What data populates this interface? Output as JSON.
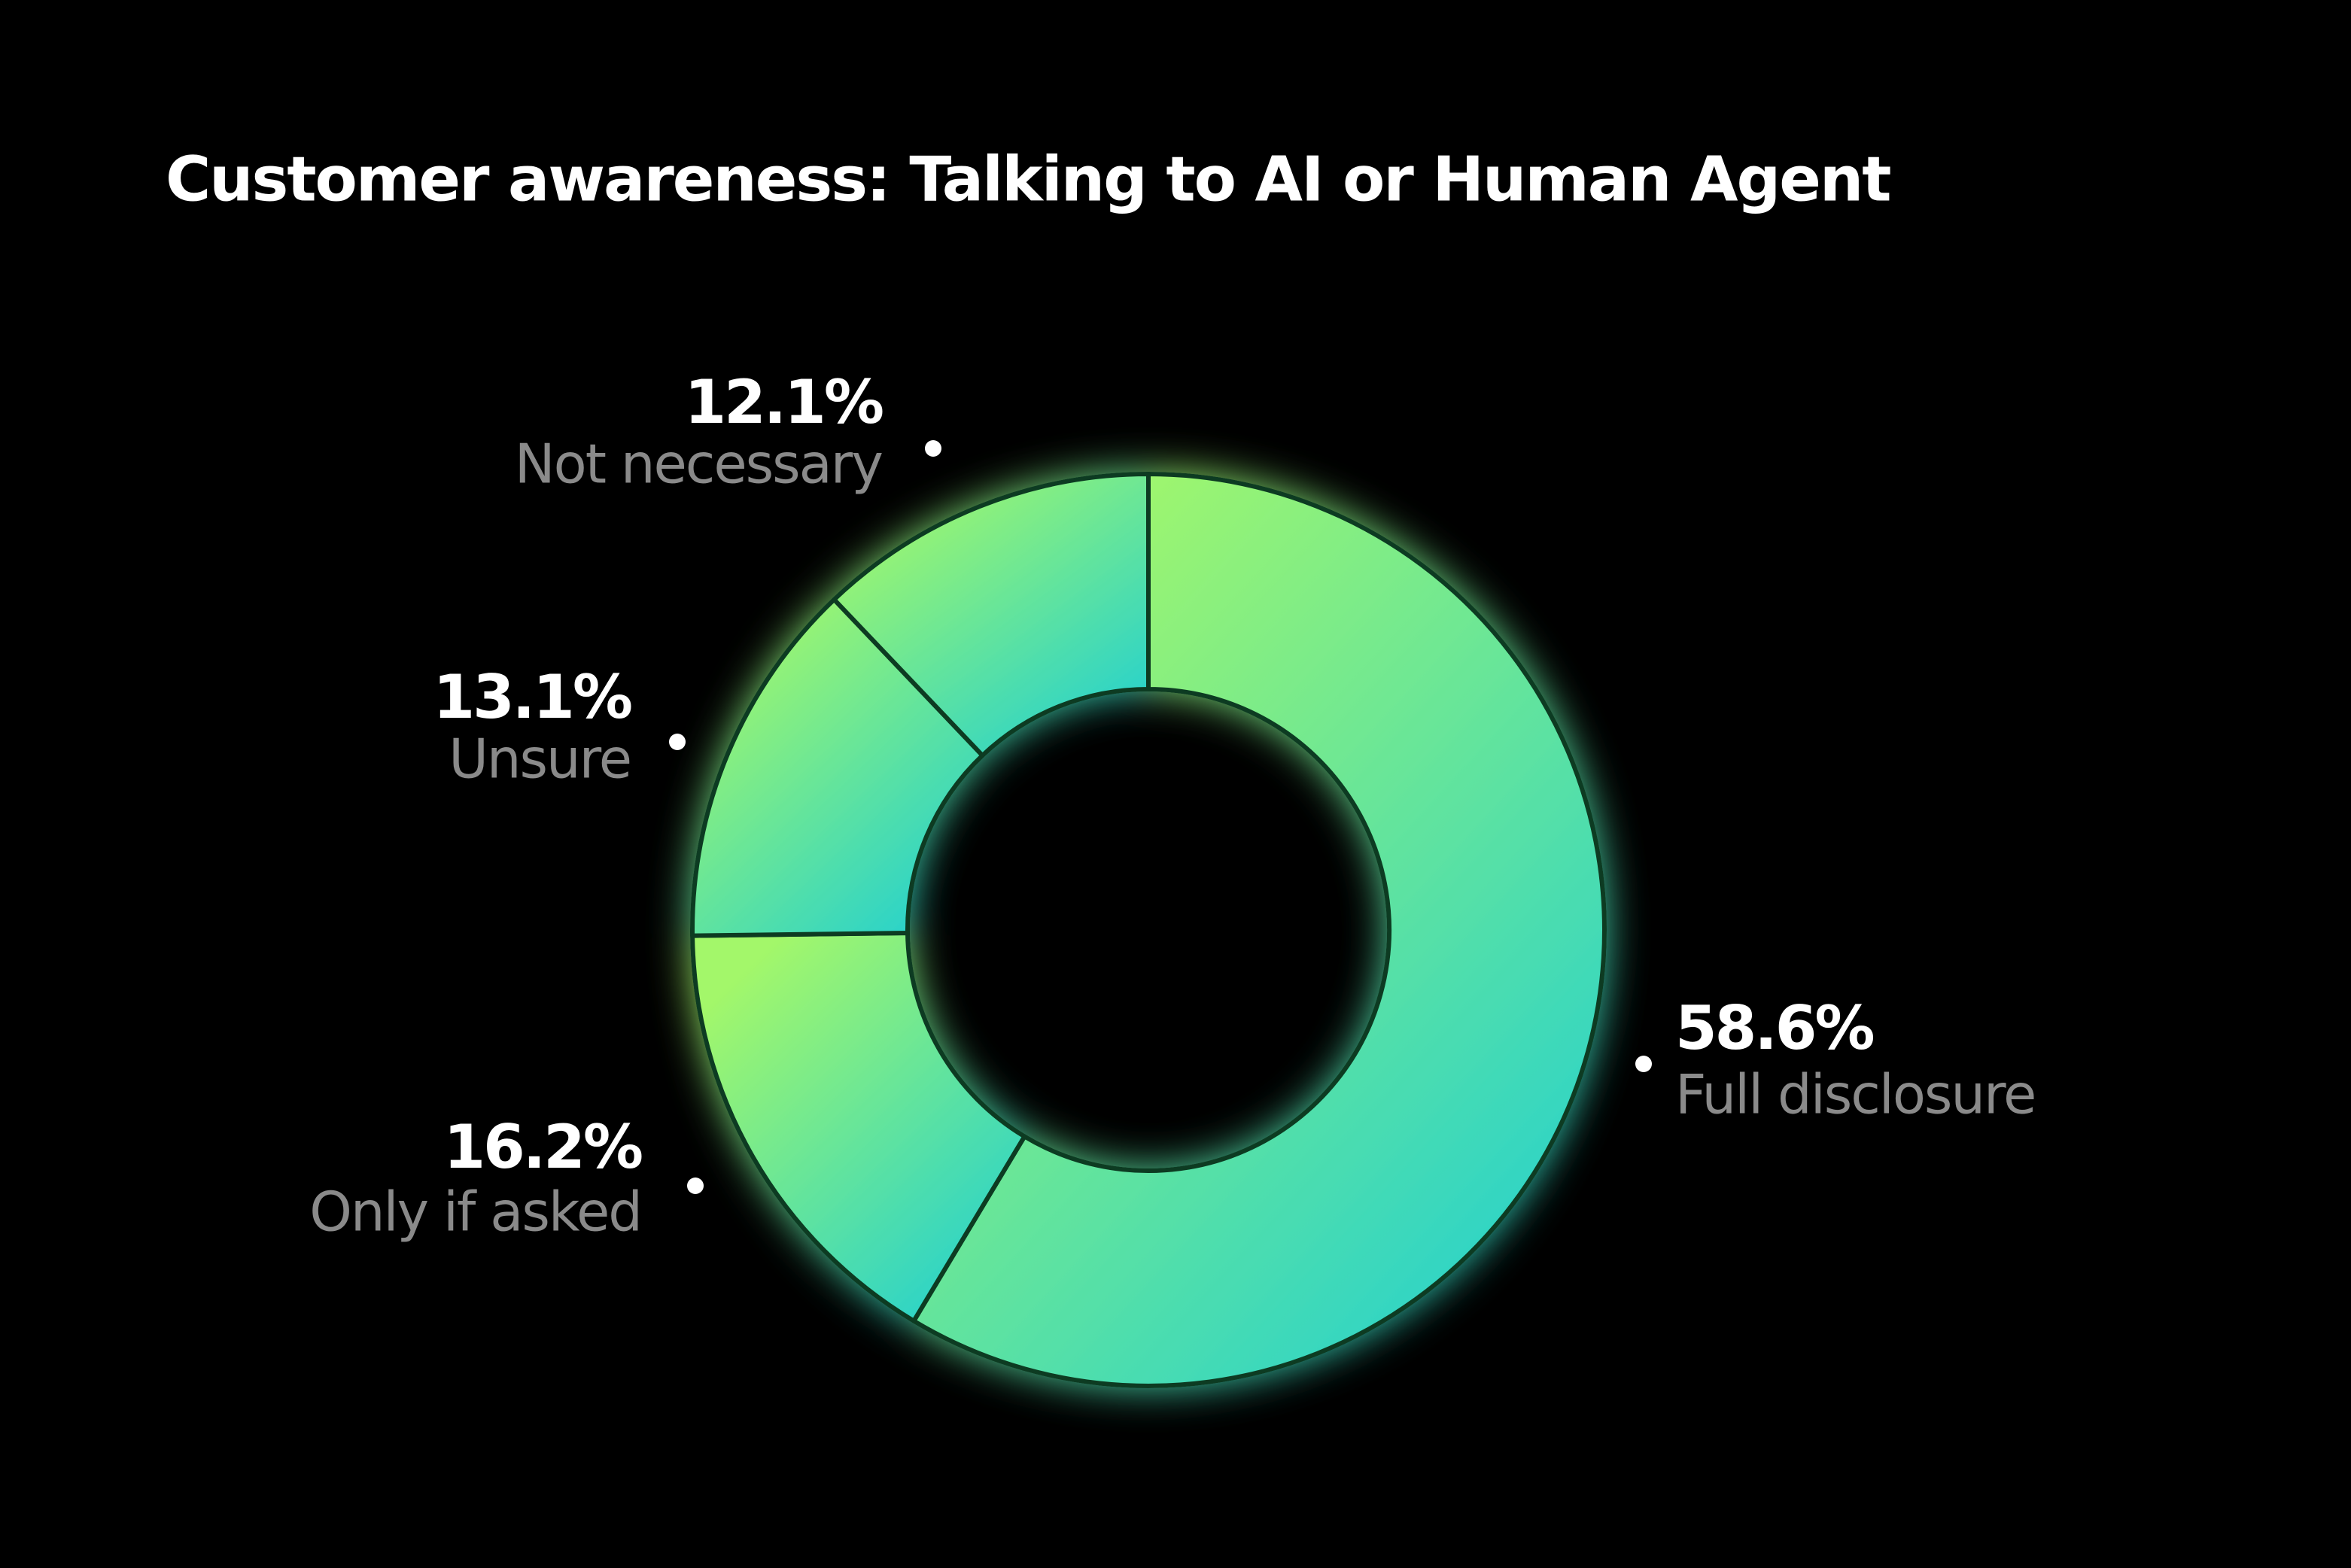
{
  "chart_data": {
    "type": "donut",
    "title": "Customer awareness: Talking to AI or Human Agent",
    "categories": [
      "Full disclosure",
      "Only if asked",
      "Unsure",
      "Not necessary"
    ],
    "values": [
      58.6,
      16.2,
      13.1,
      12.1
    ],
    "value_labels": [
      "58.6%",
      "16.2%",
      "13.1%",
      "12.1%"
    ],
    "gradient": [
      "#a3f76a",
      "#27d2cc"
    ]
  }
}
